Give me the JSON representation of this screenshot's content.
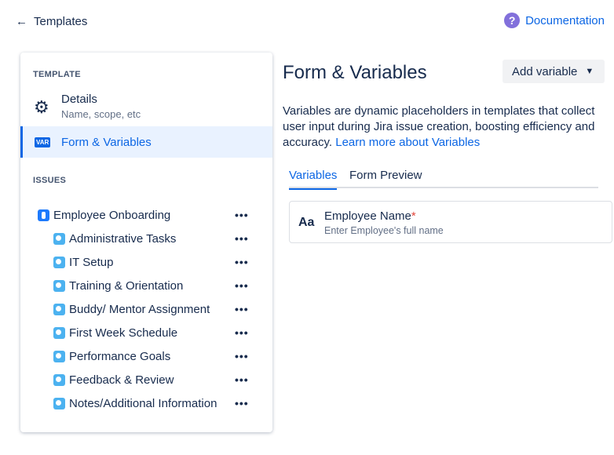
{
  "header": {
    "back_label": "Templates",
    "doc_label": "Documentation"
  },
  "sidebar": {
    "template_heading": "TEMPLATE",
    "details": {
      "title": "Details",
      "subtitle": "Name, scope, etc"
    },
    "form": {
      "icon_text": "VAR",
      "title": "Form & Variables"
    },
    "issues_heading": "ISSUES",
    "epic": "Employee Onboarding",
    "more": "•••",
    "subtasks": [
      "Administrative Tasks",
      "IT Setup",
      "Training & Orientation",
      "Buddy/ Mentor Assignment",
      "First Week Schedule",
      "Performance Goals",
      "Feedback & Review",
      "Notes/Additional Information"
    ]
  },
  "main": {
    "title": "Form & Variables",
    "add_label": "Add variable",
    "description": "Variables are dynamic placeholders in templates that collect user input during Jira issue creation, boosting efficiency and accuracy.",
    "learn_more": "Learn more about Variables",
    "tabs": [
      "Variables",
      "Form Preview"
    ],
    "variable": {
      "icon_text": "Aa",
      "name": "Employee Name",
      "required": "*",
      "placeholder": "Enter Employee's full name"
    }
  },
  "colors": {
    "accent": "#0c66e4",
    "active_bg": "#e9f2ff",
    "required": "#e2483d"
  }
}
